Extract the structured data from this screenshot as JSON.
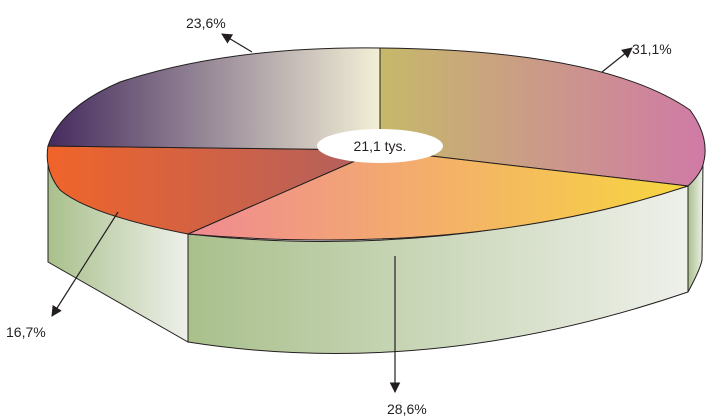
{
  "chart_data": {
    "type": "pie",
    "title": "",
    "center_label": "21,1 tys.",
    "slices": [
      {
        "label": "31,1%",
        "value": 31.1,
        "colors": [
          "#c6b96a",
          "#d07aa6"
        ]
      },
      {
        "label": "28,6%",
        "value": 28.6,
        "colors": [
          "#f08a92",
          "#f7d640"
        ]
      },
      {
        "label": "16,7%",
        "value": 16.7,
        "colors": [
          "#f0642a",
          "#b06060"
        ]
      },
      {
        "label": "23,6%",
        "value": 23.6,
        "colors": [
          "#452b5e",
          "#f2efd6"
        ]
      }
    ],
    "side_colors": [
      "#a9c08c",
      "#eef0ea"
    ],
    "style": "3d-exploded-pie"
  }
}
